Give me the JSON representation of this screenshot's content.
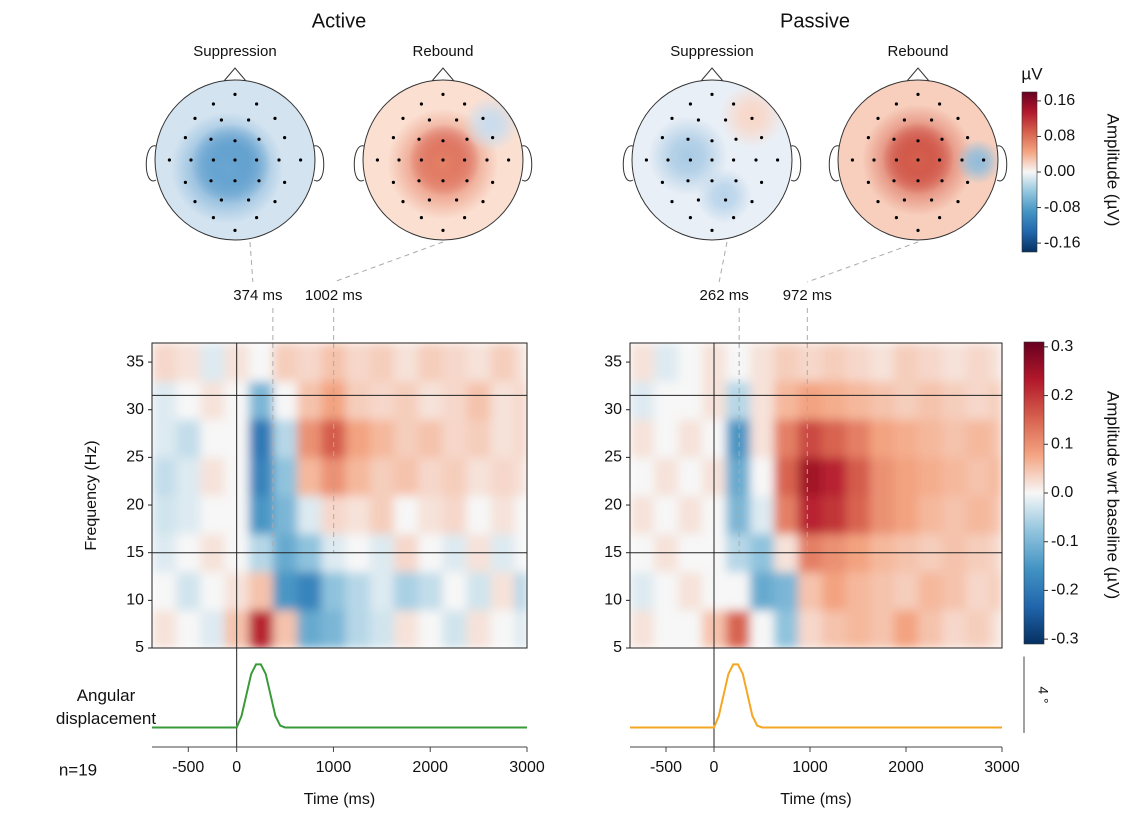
{
  "chart_data": [
    {
      "type": "heatmap",
      "title": "Active",
      "topomaps": [
        {
          "label": "Suppression",
          "time": {
            "value": 374,
            "label": "374 ms"
          }
        },
        {
          "label": "Rebound",
          "time": {
            "value": 1002,
            "label": "1002 ms"
          }
        }
      ],
      "ylabel": "Frequency (Hz)",
      "xlabel": "Time (ms)",
      "xlim": [
        -875,
        3000
      ],
      "xticks": [
        -500,
        0,
        1000,
        2000,
        3000
      ],
      "ylim": [
        5,
        37
      ],
      "yticks": [
        5,
        10,
        15,
        20,
        25,
        30,
        35
      ],
      "hlines": [
        15,
        31.5
      ],
      "x_bins": [
        -875,
        -625,
        -375,
        -125,
        125,
        375,
        625,
        875,
        1125,
        1375,
        1625,
        1875,
        2125,
        2375,
        2625,
        2875,
        3000
      ],
      "y_bins": [
        5,
        9,
        13,
        17,
        21,
        25,
        29,
        33,
        37
      ],
      "z": [
        [
          0.02,
          0.0,
          -0.02,
          0.05,
          0.22,
          0.05,
          -0.12,
          -0.1,
          -0.05,
          -0.03,
          0.02,
          0.0,
          -0.03,
          0.02,
          0.0,
          -0.02
        ],
        [
          0.0,
          -0.03,
          0.0,
          0.02,
          0.05,
          -0.15,
          -0.18,
          -0.08,
          -0.05,
          -0.02,
          -0.06,
          -0.04,
          0.0,
          -0.03,
          0.02,
          -0.05
        ],
        [
          -0.02,
          0.0,
          0.02,
          0.0,
          -0.05,
          -0.12,
          -0.08,
          -0.02,
          0.0,
          -0.02,
          0.03,
          0.0,
          -0.02,
          0.02,
          -0.02,
          0.0
        ],
        [
          -0.03,
          -0.02,
          0.0,
          0.0,
          -0.15,
          -0.1,
          -0.02,
          0.03,
          0.02,
          0.04,
          0.0,
          0.02,
          0.03,
          0.0,
          0.02,
          0.0
        ],
        [
          -0.04,
          -0.02,
          0.02,
          0.0,
          -0.18,
          -0.08,
          0.06,
          0.1,
          0.06,
          0.04,
          0.05,
          0.03,
          0.04,
          0.02,
          0.03,
          0.02
        ],
        [
          -0.02,
          -0.04,
          0.0,
          0.0,
          -0.2,
          -0.05,
          0.1,
          0.16,
          0.08,
          0.06,
          0.04,
          0.05,
          0.03,
          0.04,
          0.02,
          0.03
        ],
        [
          -0.02,
          0.0,
          0.02,
          0.0,
          -0.1,
          0.0,
          0.05,
          0.08,
          0.04,
          0.03,
          0.04,
          0.02,
          0.03,
          0.05,
          0.02,
          0.03
        ],
        [
          0.03,
          0.02,
          -0.02,
          0.02,
          0.0,
          0.04,
          0.03,
          0.05,
          0.03,
          0.04,
          0.02,
          0.04,
          0.03,
          0.02,
          0.04,
          0.02
        ]
      ],
      "trace": {
        "color": "#3a9a3a",
        "ylim": [
          -0.5,
          4
        ],
        "x": [
          -875,
          0,
          50,
          100,
          150,
          200,
          250,
          300,
          350,
          400,
          450,
          500,
          3000
        ],
        "values": [
          0,
          0,
          0.6,
          1.7,
          2.8,
          3.3,
          3.3,
          2.8,
          1.7,
          0.6,
          0.1,
          0,
          0
        ]
      }
    },
    {
      "type": "heatmap",
      "title": "Passive",
      "topomaps": [
        {
          "label": "Suppression",
          "time": {
            "value": 262,
            "label": "262 ms"
          }
        },
        {
          "label": "Rebound",
          "time": {
            "value": 972,
            "label": "972 ms"
          }
        }
      ],
      "xlabel": "Time (ms)",
      "xlim": [
        -875,
        3000
      ],
      "xticks": [
        -500,
        0,
        1000,
        2000,
        3000
      ],
      "ylim": [
        5,
        37
      ],
      "yticks": [
        5,
        10,
        15,
        20,
        25,
        30,
        35
      ],
      "hlines": [
        15,
        31.5
      ],
      "x_bins": [
        -875,
        -625,
        -375,
        -125,
        125,
        375,
        625,
        875,
        1125,
        1375,
        1625,
        1875,
        2125,
        2375,
        2625,
        2875,
        3000
      ],
      "y_bins": [
        5,
        9,
        13,
        17,
        21,
        25,
        29,
        33,
        37
      ],
      "z": [
        [
          0.02,
          0.0,
          0.0,
          0.05,
          0.15,
          0.0,
          -0.08,
          0.03,
          0.05,
          0.06,
          0.05,
          0.08,
          0.05,
          0.03,
          0.04,
          0.02
        ],
        [
          -0.02,
          0.0,
          0.02,
          0.0,
          0.0,
          -0.12,
          -0.1,
          0.05,
          0.08,
          0.06,
          0.05,
          0.04,
          0.06,
          0.05,
          0.03,
          0.04
        ],
        [
          0.0,
          0.02,
          0.0,
          0.0,
          -0.05,
          -0.08,
          0.02,
          0.12,
          0.1,
          0.08,
          0.06,
          0.05,
          0.04,
          0.05,
          0.04,
          0.03
        ],
        [
          0.02,
          0.0,
          0.02,
          0.0,
          -0.1,
          -0.02,
          0.12,
          0.22,
          0.2,
          0.15,
          0.1,
          0.08,
          0.06,
          0.05,
          0.06,
          0.05
        ],
        [
          0.0,
          0.02,
          0.0,
          0.02,
          -0.12,
          0.0,
          0.15,
          0.25,
          0.22,
          0.16,
          0.1,
          0.08,
          0.07,
          0.06,
          0.05,
          0.06
        ],
        [
          0.02,
          0.0,
          0.02,
          0.0,
          -0.15,
          0.02,
          0.12,
          0.18,
          0.15,
          0.12,
          0.08,
          0.07,
          0.06,
          0.05,
          0.06,
          0.05
        ],
        [
          -0.02,
          0.0,
          0.0,
          0.02,
          -0.05,
          0.02,
          0.06,
          0.08,
          0.07,
          0.06,
          0.05,
          0.04,
          0.05,
          0.04,
          0.03,
          0.04
        ],
        [
          0.02,
          -0.02,
          0.0,
          0.02,
          0.0,
          0.02,
          0.04,
          0.03,
          0.04,
          0.03,
          0.02,
          0.04,
          0.03,
          0.02,
          0.03,
          0.02
        ]
      ],
      "trace": {
        "color": "#f5a623",
        "ylim": [
          -0.5,
          4
        ],
        "x": [
          -875,
          0,
          50,
          100,
          150,
          200,
          250,
          300,
          350,
          400,
          450,
          500,
          3000
        ],
        "values": [
          0,
          0,
          0.6,
          1.7,
          2.8,
          3.3,
          3.3,
          2.8,
          1.7,
          0.6,
          0.1,
          0,
          0
        ]
      }
    }
  ],
  "topomap_colorbar": {
    "unit": "µV",
    "label": "Amplitude (µV)",
    "ylim": [
      -0.18,
      0.18
    ],
    "ticks": [
      0.16,
      0.08,
      {
        "value": 0,
        "label": "0.00"
      },
      -0.08,
      -0.16
    ]
  },
  "tf_colorbar": {
    "label": "Amplitude wrt baseline (µV)",
    "ylim": [
      -0.31,
      0.31
    ],
    "ticks": [
      0.3,
      0.2,
      0.1,
      {
        "value": 0,
        "label": "0.0"
      },
      -0.1,
      -0.2,
      -0.3
    ]
  },
  "trace_label": "Angular displacement",
  "scale_bar": {
    "value": 4,
    "label": "4 °"
  },
  "n_label": "n=19"
}
